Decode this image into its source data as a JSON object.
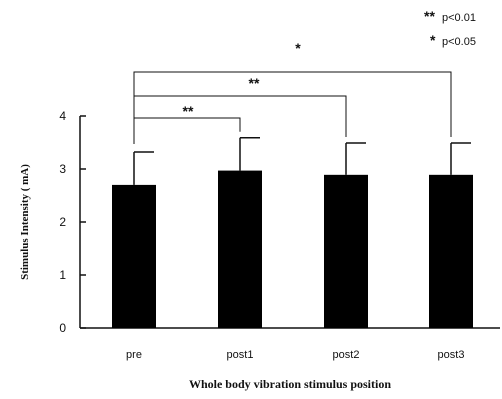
{
  "chart_data": {
    "type": "bar",
    "categories": [
      "pre",
      "post1",
      "post2",
      "post3"
    ],
    "values": [
      2.7,
      2.97,
      2.89,
      2.89
    ],
    "errors": [
      0.62,
      0.62,
      0.6,
      0.6
    ],
    "title": "",
    "xlabel": "Whole body vibration stimulus position",
    "ylabel": "Stimulus Intensity ( mA)",
    "ylim": [
      0,
      4
    ],
    "yticks": [
      "0",
      "1",
      "2",
      "3",
      "4"
    ],
    "bar_color": "#000000",
    "grid": false,
    "legend": [
      {
        "marker": "**",
        "text": "p<0.01"
      },
      {
        "marker": "*",
        "text": "p<0.05"
      }
    ],
    "significance": [
      {
        "from": "pre",
        "to": "post1",
        "label": "**"
      },
      {
        "from": "pre",
        "to": "post2",
        "label": "**"
      },
      {
        "from": "pre",
        "to": "post3",
        "label": "*"
      }
    ]
  }
}
